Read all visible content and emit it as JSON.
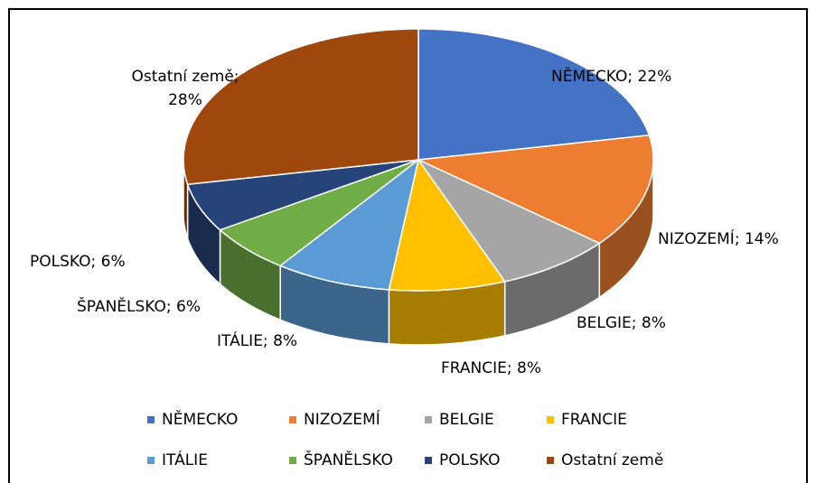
{
  "chart_data": {
    "type": "pie3d",
    "categories": [
      "NĚMECKO",
      "NIZOZEMÍ",
      "BELGIE",
      "FRANCIE",
      "ITÁLIE",
      "ŠPANĚLSKO",
      "POLSKO",
      "Ostatní země"
    ],
    "values": [
      22,
      14,
      8,
      8,
      8,
      6,
      6,
      28
    ],
    "value_labels": [
      [
        "NĚMECKO; 22%"
      ],
      [
        "NIZOZEMÍ; 14%"
      ],
      [
        "BELGIE; 8%"
      ],
      [
        "FRANCIE; 8%"
      ],
      [
        "ITÁLIE; 8%"
      ],
      [
        "ŠPANĚLSKO; 6%"
      ],
      [
        "POLSKO; 6%"
      ],
      [
        "Ostatní země;",
        "28%"
      ]
    ],
    "colors": [
      "#4472c4",
      "#ed7d31",
      "#a5a5a5",
      "#ffc000",
      "#5b9bd5",
      "#70ad47",
      "#264478",
      "#9e480e"
    ],
    "legend": "bottom"
  }
}
